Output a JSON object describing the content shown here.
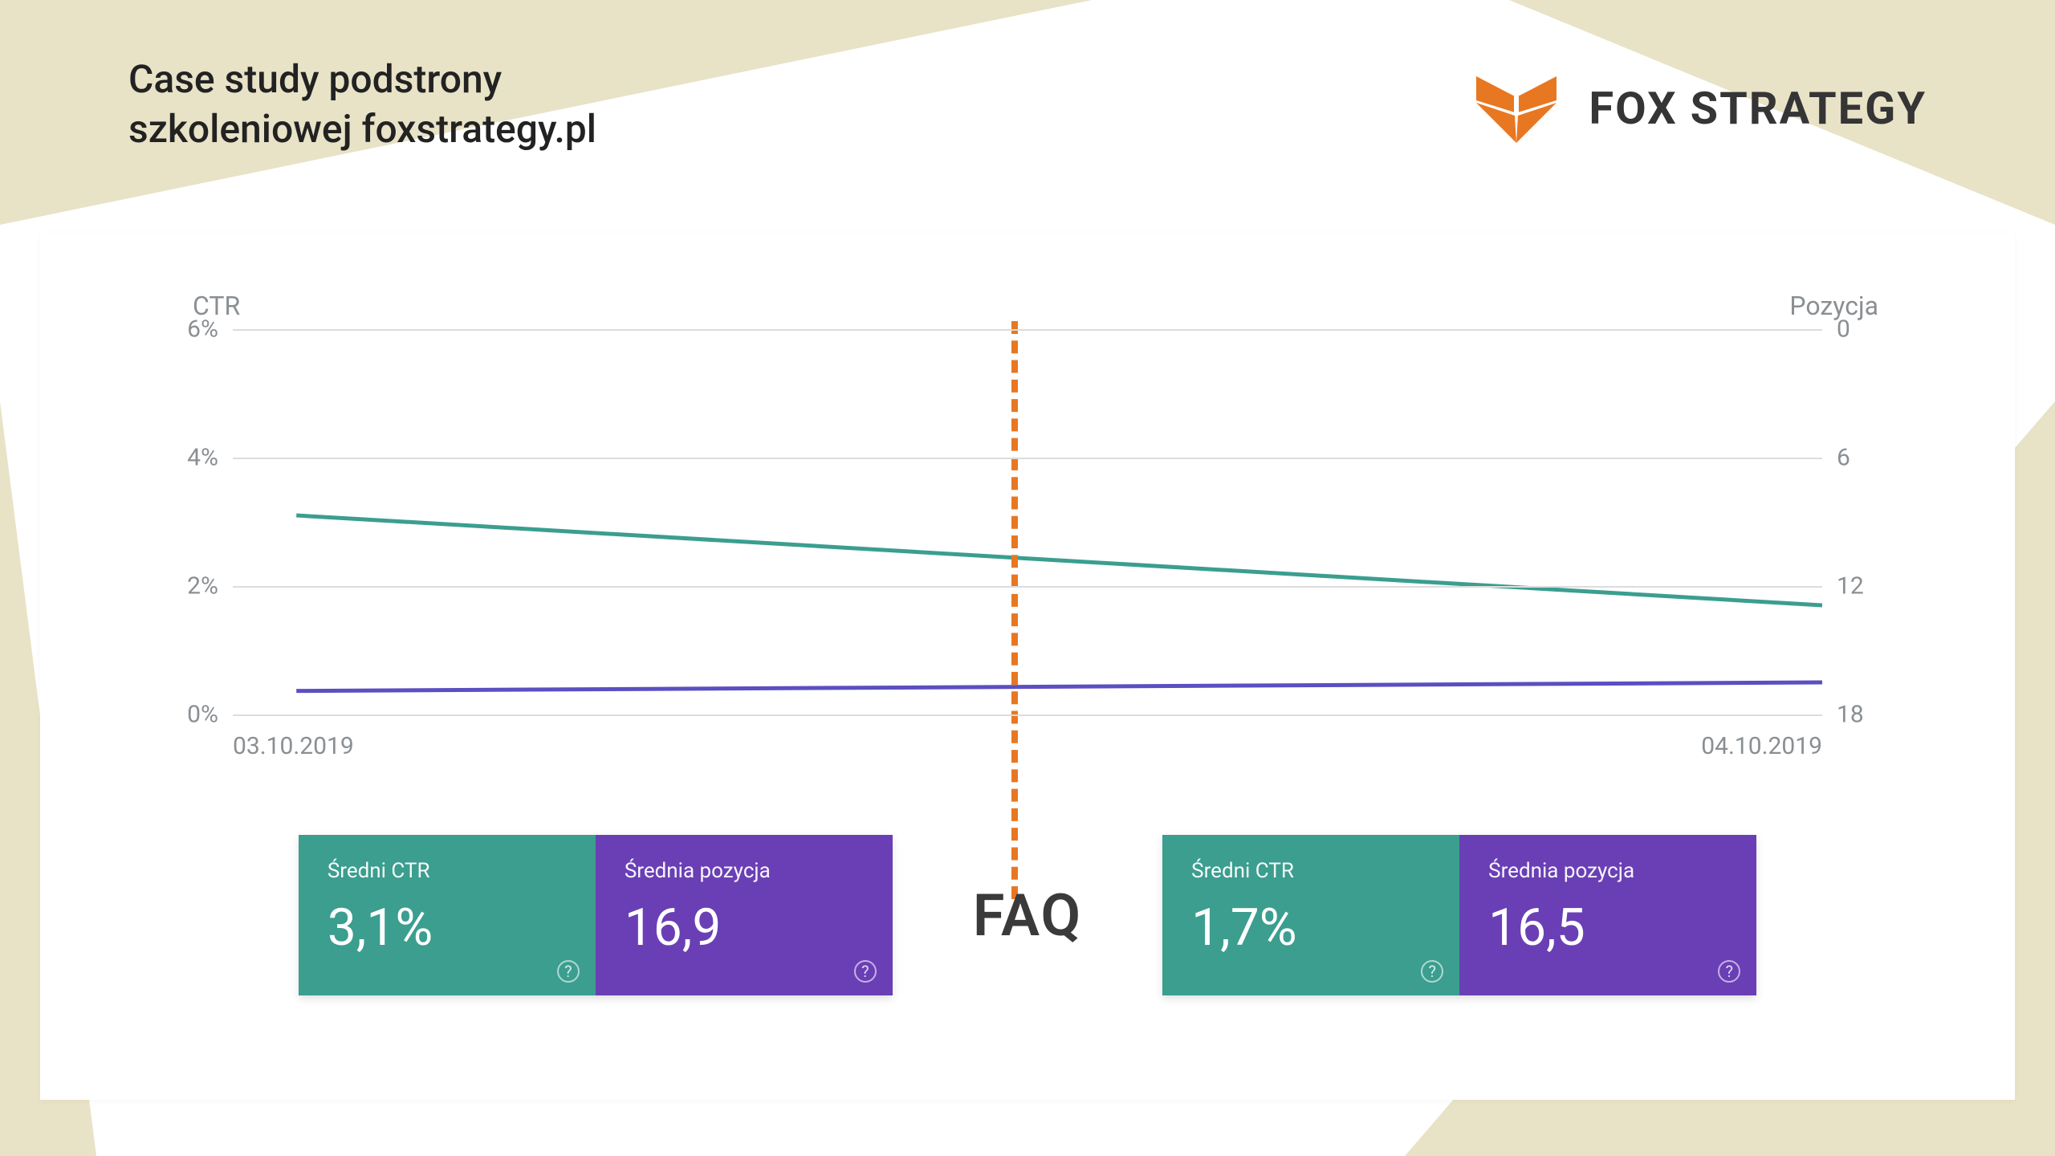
{
  "slide": {
    "title_line1": "Case study podstrony",
    "title_line2": "szkoleniowej foxstrategy.pl",
    "title_color": "#222222",
    "title_fontsize": 48,
    "background_color": "#ffffff",
    "triangle_color": "#e8e2c7"
  },
  "brand": {
    "name": "FOX STRATEGY",
    "text_color": "#353535",
    "logo_color": "#e87722",
    "fontsize": 56
  },
  "chart": {
    "type": "line-dual-axis",
    "left_axis": {
      "title": "CTR",
      "ticks": [
        "6%",
        "4%",
        "2%",
        "0%"
      ],
      "ylim": [
        0,
        6
      ],
      "tick_step": 2
    },
    "right_axis": {
      "title": "Pozycja",
      "ticks": [
        "0",
        "6",
        "12",
        "18"
      ],
      "ylim": [
        18,
        0
      ],
      "tick_step": 6,
      "inverted": true
    },
    "x_axis": {
      "start_label": "03.10.2019",
      "end_label": "04.10.2019"
    },
    "grid_color": "#dcdcdc",
    "tick_color": "#8a8f93",
    "tick_fontsize": 30,
    "divider": {
      "position_pct": 49,
      "color": "#e87722",
      "dash": "20 18",
      "width": 8
    },
    "series": [
      {
        "name": "CTR",
        "axis": "left",
        "color": "#3b9e8f",
        "line_width": 5,
        "points_pct": [
          {
            "x": 4,
            "y": 3.1
          },
          {
            "x": 100,
            "y": 1.7
          }
        ]
      },
      {
        "name": "Pozycja",
        "axis": "right",
        "color": "#5b4fc1",
        "line_width": 5,
        "points_pct": [
          {
            "x": 4,
            "y": 16.9
          },
          {
            "x": 100,
            "y": 16.5
          }
        ]
      }
    ]
  },
  "faq_label": "FAQ",
  "cards": {
    "left": [
      {
        "label": "Średni CTR",
        "value": "3,1%",
        "bg": "#3b9e8f"
      },
      {
        "label": "Średnia pozycja",
        "value": "16,9",
        "bg": "#6a3fb5"
      }
    ],
    "right": [
      {
        "label": "Średni CTR",
        "value": "1,7%",
        "bg": "#3b9e8f"
      },
      {
        "label": "Średnia pozycja",
        "value": "16,5",
        "bg": "#6a3fb5"
      }
    ],
    "label_fontsize": 26,
    "value_fontsize": 64,
    "text_color": "#ffffff"
  }
}
